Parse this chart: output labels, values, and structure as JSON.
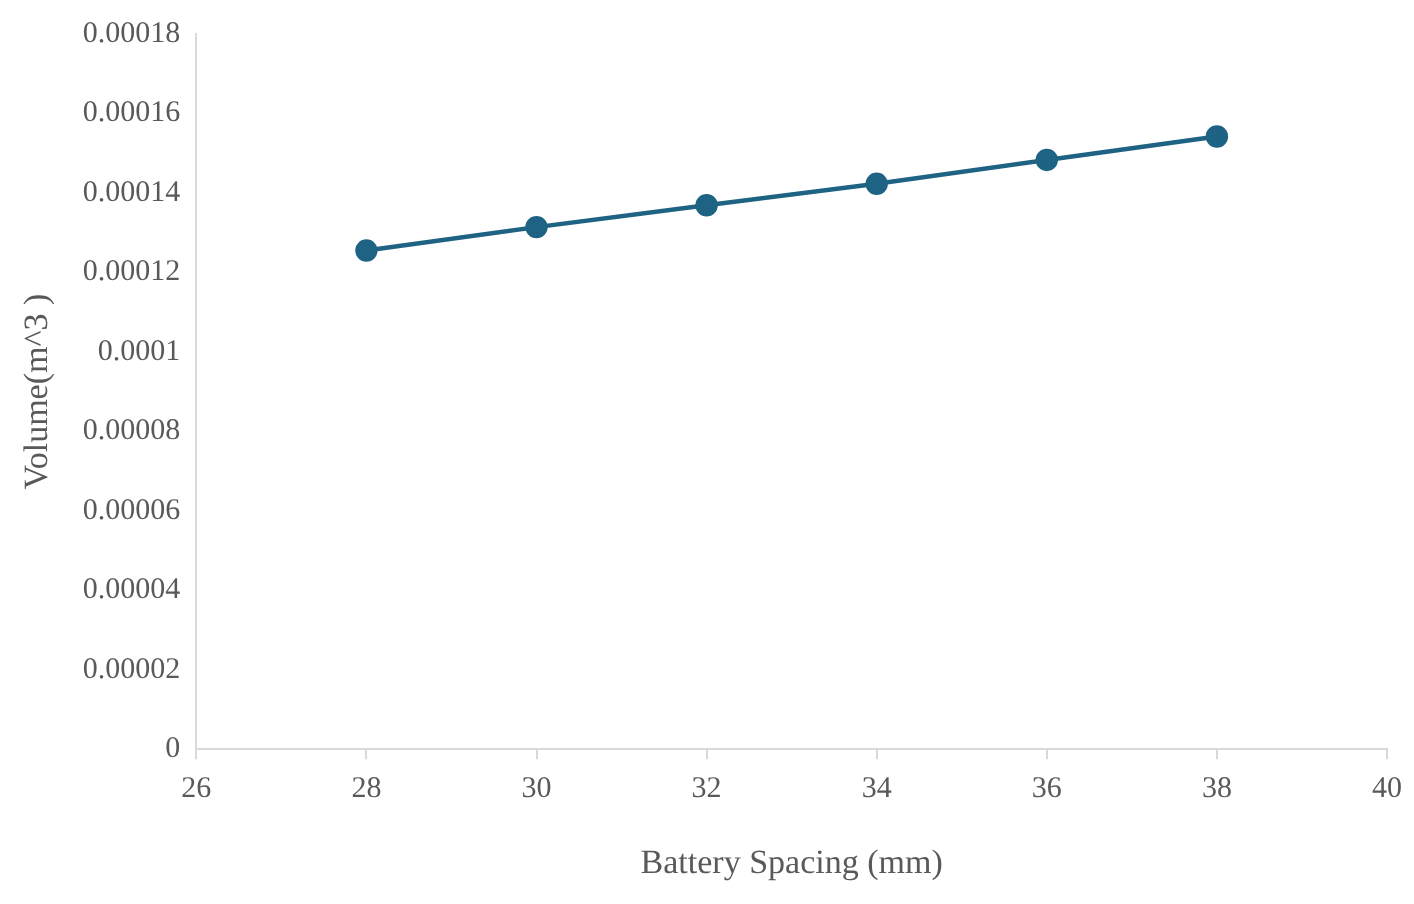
{
  "chart_data": {
    "type": "line",
    "xlabel": "Battery Spacing (mm)",
    "ylabel": "Volume(m^3 )",
    "x": [
      28,
      30,
      32,
      34,
      36,
      38
    ],
    "series": [
      {
        "color": "#1f6384",
        "values": [
          0.0001255,
          0.0001314,
          0.0001369,
          0.0001423,
          0.0001483,
          0.0001542
        ]
      }
    ],
    "xlim": [
      26,
      40
    ],
    "xticks": [
      26,
      28,
      30,
      32,
      34,
      36,
      38,
      40
    ],
    "ylim": [
      0,
      0.00018
    ],
    "yticks": [
      0,
      {
        "value": 2e-05,
        "label": "0.00002"
      },
      {
        "value": 4e-05,
        "label": "0.00004"
      },
      {
        "value": 6e-05,
        "label": "0.00006"
      },
      {
        "value": 8e-05,
        "label": "0.00008"
      },
      0.0001,
      0.00012,
      0.00014,
      0.00016,
      0.00018
    ],
    "grid": false,
    "legend": false,
    "marker": "circle",
    "line_style": "solid"
  }
}
